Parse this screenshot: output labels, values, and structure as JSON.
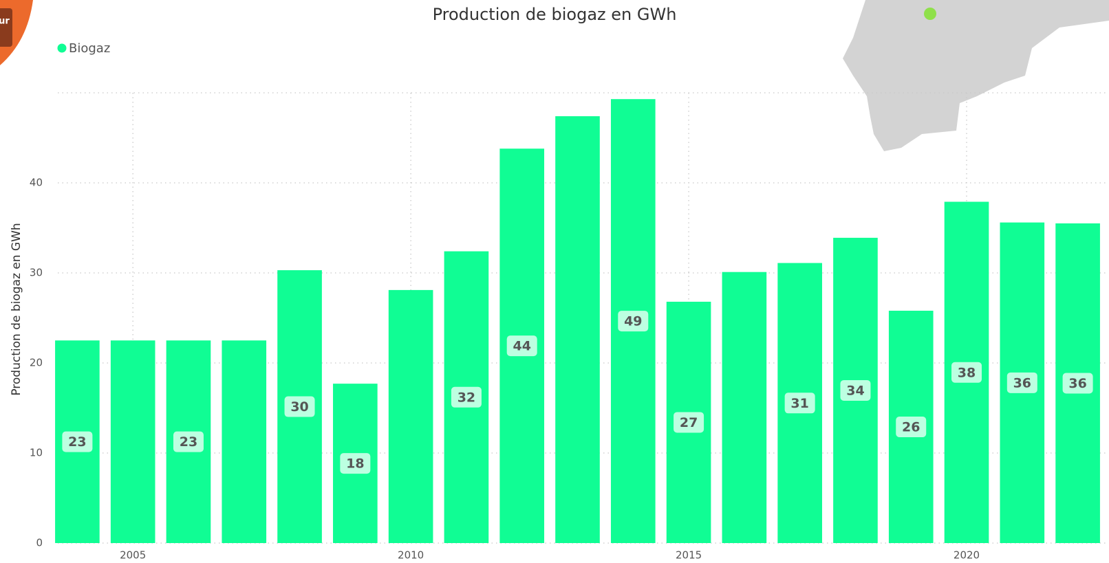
{
  "overlay_button": "ur",
  "chart_data": {
    "type": "bar",
    "title": "Production de biogaz en GWh",
    "y_label": "Production de biogaz en GWh",
    "x": [
      2004,
      2005,
      2006,
      2007,
      2008,
      2009,
      2010,
      2011,
      2012,
      2013,
      2014,
      2015,
      2016,
      2017,
      2018,
      2019,
      2020,
      2021,
      2022
    ],
    "xlim": [
      2003.5,
      2022.5
    ],
    "xticks": [
      2005,
      2010,
      2015,
      2020
    ],
    "series": [
      {
        "name": "Biogaz",
        "color": "#10fd94",
        "values": [
          22.5,
          22.5,
          22.5,
          22.5,
          30.3,
          17.7,
          28.1,
          32.4,
          43.8,
          47.4,
          49.3,
          26.8,
          30.1,
          31.1,
          33.9,
          25.8,
          37.9,
          35.6,
          35.5
        ],
        "value_labels": [
          "23",
          null,
          "23",
          null,
          "30",
          "18",
          null,
          "32",
          "44",
          null,
          "49",
          "27",
          null,
          "31",
          "34",
          "26",
          "38",
          "36",
          "36"
        ]
      }
    ],
    "ylim": [
      0,
      50
    ],
    "yticks": [
      0,
      10,
      20,
      30,
      40
    ],
    "grid": true,
    "legend": "top-left"
  }
}
